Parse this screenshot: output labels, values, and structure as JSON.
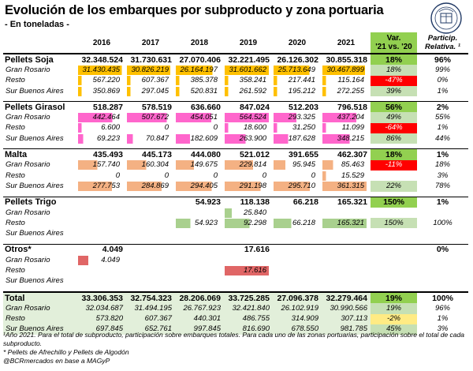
{
  "title": "Evolución de los embarques por subproducto y zona portuaria",
  "subtitle": "- En toneladas -",
  "header": {
    "years": [
      "2016",
      "2017",
      "2018",
      "2019",
      "2020",
      "2021"
    ],
    "var_line1": "Var.",
    "var_line2": "'21 vs. '20",
    "part_line1": "Particip.",
    "part_line2": "Relativa. ¹"
  },
  "groups": [
    {
      "name": "Pellets Soja",
      "values": [
        "32.348.524",
        "31.730.631",
        "27.070.406",
        "32.221.495",
        "26.126.302",
        "30.855.318"
      ],
      "var": "18%",
      "part": "96%",
      "rows": [
        {
          "name": "Gran Rosario",
          "values": [
            "31.430.435",
            "30.826.219",
            "26.164.197",
            "31.601.662",
            "25.713.649",
            "30.467.899"
          ],
          "var": "18%",
          "part": "99%"
        },
        {
          "name": "Resto",
          "values": [
            "567.220",
            "607.367",
            "385.378",
            "358.241",
            "217.441",
            "115.164"
          ],
          "var": "-47%",
          "part": "0%"
        },
        {
          "name": "Sur Buenos Aires",
          "values": [
            "350.869",
            "297.045",
            "520.831",
            "261.592",
            "195.212",
            "272.255"
          ],
          "var": "39%",
          "part": "1%"
        }
      ]
    },
    {
      "name": "Pellets Girasol",
      "values": [
        "518.287",
        "578.519",
        "636.660",
        "847.024",
        "512.203",
        "796.518"
      ],
      "var": "56%",
      "part": "2%",
      "rows": [
        {
          "name": "Gran Rosario",
          "values": [
            "442.464",
            "507.672",
            "454.051",
            "564.524",
            "293.325",
            "437.204"
          ],
          "var": "49%",
          "part": "55%"
        },
        {
          "name": "Resto",
          "values": [
            "6.600",
            "0",
            "0",
            "18.600",
            "31.250",
            "11.099"
          ],
          "var": "-64%",
          "part": "1%"
        },
        {
          "name": "Sur Buenos Aires",
          "values": [
            "69.223",
            "70.847",
            "182.609",
            "263.900",
            "187.628",
            "348.215"
          ],
          "var": "86%",
          "part": "44%"
        }
      ]
    },
    {
      "name": "Malta",
      "values": [
        "435.493",
        "445.173",
        "444.080",
        "521.012",
        "391.655",
        "462.307"
      ],
      "var": "18%",
      "part": "1%",
      "rows": [
        {
          "name": "Gran Rosario",
          "values": [
            "157.740",
            "160.304",
            "149.675",
            "229.814",
            "95.945",
            "85.463"
          ],
          "var": "-11%",
          "part": "18%"
        },
        {
          "name": "Resto",
          "values": [
            "0",
            "0",
            "0",
            "0",
            "0",
            "15.529"
          ],
          "var": "",
          "part": "3%"
        },
        {
          "name": "Sur Buenos Aires",
          "values": [
            "277.753",
            "284.869",
            "294.405",
            "291.198",
            "295.710",
            "361.315"
          ],
          "var": "22%",
          "part": "78%"
        }
      ]
    },
    {
      "name": "Pellets Trigo",
      "values": [
        "",
        "",
        "54.923",
        "118.138",
        "66.218",
        "165.321"
      ],
      "var": "150%",
      "part": "1%",
      "rows": [
        {
          "name": "Gran Rosario",
          "values": [
            "",
            "",
            "",
            "25.840",
            "",
            ""
          ],
          "var": "",
          "part": ""
        },
        {
          "name": "Resto",
          "values": [
            "",
            "",
            "54.923",
            "92.298",
            "66.218",
            "165.321"
          ],
          "var": "150%",
          "part": "100%"
        },
        {
          "name": "Sur Buenos Aires",
          "values": [
            "",
            "",
            "",
            "",
            "",
            ""
          ],
          "var": "",
          "part": ""
        }
      ]
    },
    {
      "name": "Otros*",
      "values": [
        "4.049",
        "",
        "",
        "17.616",
        "",
        ""
      ],
      "var": "",
      "part": "0%",
      "rows": [
        {
          "name": "Gran Rosario",
          "values": [
            "4.049",
            "",
            "",
            "",
            "",
            ""
          ],
          "var": "",
          "part": ""
        },
        {
          "name": "Resto",
          "values": [
            "",
            "",
            "",
            "17.616",
            "",
            ""
          ],
          "var": "",
          "part": ""
        },
        {
          "name": "Sur Buenos Aires",
          "values": [
            "",
            "",
            "",
            "",
            "",
            ""
          ],
          "var": "",
          "part": ""
        }
      ]
    }
  ],
  "total": {
    "name": "Total",
    "values": [
      "33.306.353",
      "32.754.323",
      "28.206.069",
      "33.725.285",
      "27.096.378",
      "32.279.464"
    ],
    "var": "19%",
    "part": "100%",
    "rows": [
      {
        "name": "Gran Rosario",
        "values": [
          "32.034.687",
          "31.494.195",
          "26.767.923",
          "32.421.840",
          "26.102.919",
          "30.990.566"
        ],
        "var": "19%",
        "part": "96%"
      },
      {
        "name": "Resto",
        "values": [
          "573.820",
          "607.367",
          "440.301",
          "486.755",
          "314.909",
          "307.113"
        ],
        "var": "-2%",
        "part": "1%"
      },
      {
        "name": "Sur Buenos Aires",
        "values": [
          "697.845",
          "652.761",
          "997.845",
          "816.690",
          "678.550",
          "981.785"
        ],
        "var": "45%",
        "part": "3%"
      }
    ]
  },
  "footnotes": [
    "¹Año 2021. Para el total de subproducto, participación sobre embarques totales. Para cada uno de las zonas portuarias, participación sobre el total de cada subproducto.",
    "* Pellets de Afrechillo y Pellets de Algodón",
    "@BCRmercados en base a MAGyP"
  ],
  "colors": {
    "positive": "#92d050",
    "positive_light": "#c6e0b4",
    "negative": "#ff0000",
    "soja_bar": "#ffc000",
    "girasol_bar": "#ff66cc",
    "malta_bar": "#f4b183",
    "trigo_bar": "#a9d08e",
    "otros_bar": "#e06666",
    "total_row": "#e2efda",
    "seal": "#1f3864"
  },
  "icons": {
    "seal": "bcr-seal-icon"
  }
}
